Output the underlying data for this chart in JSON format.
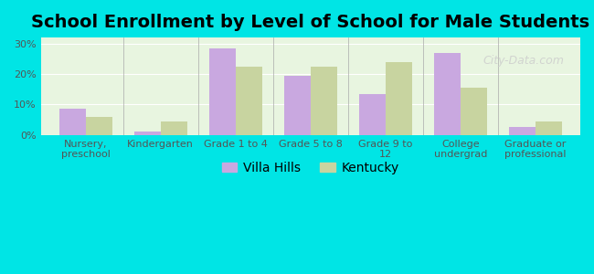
{
  "title": "School Enrollment by Level of School for Male Students",
  "categories": [
    "Nursery,\npreschool",
    "Kindergarten",
    "Grade 1 to 4",
    "Grade 5 to 8",
    "Grade 9 to\n12",
    "College\nundergrad",
    "Graduate or\nprofessional"
  ],
  "villa_hills": [
    8.5,
    1.0,
    28.5,
    19.5,
    13.5,
    27.0,
    2.5
  ],
  "kentucky": [
    6.0,
    4.5,
    22.5,
    22.5,
    24.0,
    15.5,
    4.5
  ],
  "villa_hills_color": "#c9a8e0",
  "kentucky_color": "#c8d4a0",
  "background_outer": "#00e5e5",
  "background_inner": "#e8f5e0",
  "yticks": [
    0,
    10,
    20,
    30
  ],
  "ylim": [
    0,
    32
  ],
  "bar_width": 0.35,
  "title_fontsize": 14,
  "tick_fontsize": 8,
  "legend_fontsize": 10,
  "watermark": "City-Data.com"
}
